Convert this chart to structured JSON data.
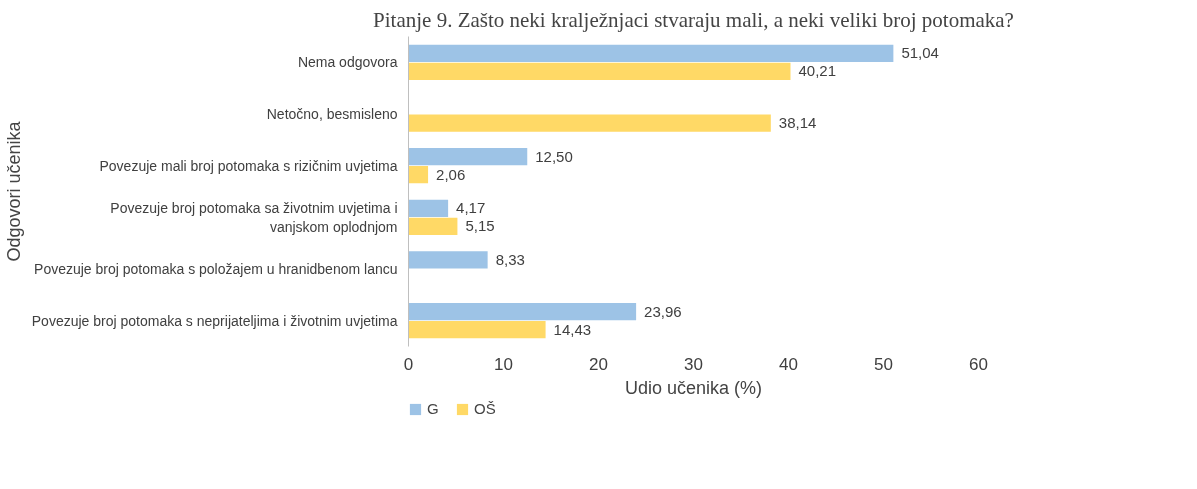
{
  "chart_data": {
    "type": "bar",
    "orientation": "horizontal",
    "title": "Pitanje 9. Zašto neki kralježnjaci stvaraju mali, a neki veliki broj potomaka?",
    "xlabel": "Udio učenika (%)",
    "ylabel": "Odgovori učenika",
    "categories": [
      "Nema odgovora",
      "Netočno, besmisleno",
      "Povezuje mali broj potomaka s rizičnim uvjetima",
      "Povezuje broj potomaka sa životnim uvjetima i vanjskom oplodnjom",
      "Povezuje broj potomaka s položajem u hranidbenom lancu",
      "Povezuje broj potomaka s neprijateljima i životnim uvjetima"
    ],
    "series": [
      {
        "name": "G",
        "color": "#9dc3e6",
        "values": [
          51.04,
          null,
          12.5,
          4.17,
          8.33,
          23.96
        ],
        "value_labels": [
          "51,04",
          null,
          "12,50",
          "4,17",
          "8,33",
          "23,96"
        ]
      },
      {
        "name": "OŠ",
        "color": "#ffd966",
        "values": [
          40.21,
          38.14,
          2.06,
          5.15,
          null,
          14.43
        ],
        "value_labels": [
          "40,21",
          "38,14",
          "2,06",
          "5,15",
          null,
          "14,43"
        ]
      }
    ],
    "xlim": [
      0,
      60
    ],
    "xticks": [
      0,
      10,
      20,
      30,
      40,
      50,
      60
    ],
    "grid": false,
    "legend": "bottom left"
  }
}
